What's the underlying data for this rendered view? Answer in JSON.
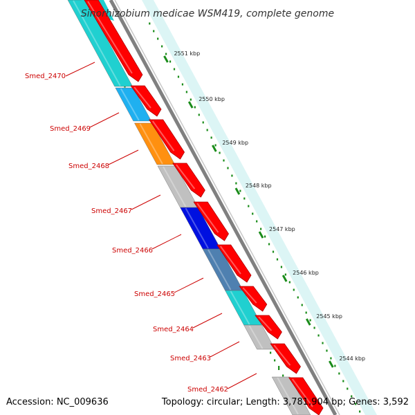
{
  "title": "Sinorhizobium medicae WSM419, complete genome",
  "footer": {
    "accession": "Accession: NC_009636",
    "topology": "Topology: circular; Length: 3,781,904 bp; Genes: 3,592"
  },
  "colors": {
    "forward_strand": "#ff0000",
    "gc_skew_dots": "#1a8c1a",
    "backbone": "#808080",
    "label": "#cc0000"
  },
  "ticks": [
    {
      "label": "2551 kbp"
    },
    {
      "label": "2550 kbp"
    },
    {
      "label": "2549 kbp"
    },
    {
      "label": "2548 kbp"
    },
    {
      "label": "2547 kbp"
    },
    {
      "label": "2546 kbp"
    },
    {
      "label": "2545 kbp"
    },
    {
      "label": "2544 kbp"
    }
  ],
  "genes": [
    {
      "label": "Smed_2470",
      "color": "#20d0d0"
    },
    {
      "label": "Smed_2469",
      "color": "#1fb0f0"
    },
    {
      "label": "Smed_2468",
      "color": "#ff9010"
    },
    {
      "label": "Smed_2467",
      "color": "#c0c0c0"
    },
    {
      "label": "Smed_2466",
      "color": "#0010e0"
    },
    {
      "label": "Smed_2465",
      "color": "#4f80b0"
    },
    {
      "label": "Smed_2464",
      "color": "#20d0d0"
    },
    {
      "label": "Smed_2463",
      "color": "#c0c0c0"
    },
    {
      "label": "Smed_2462",
      "color": "#c0c0c0"
    }
  ]
}
